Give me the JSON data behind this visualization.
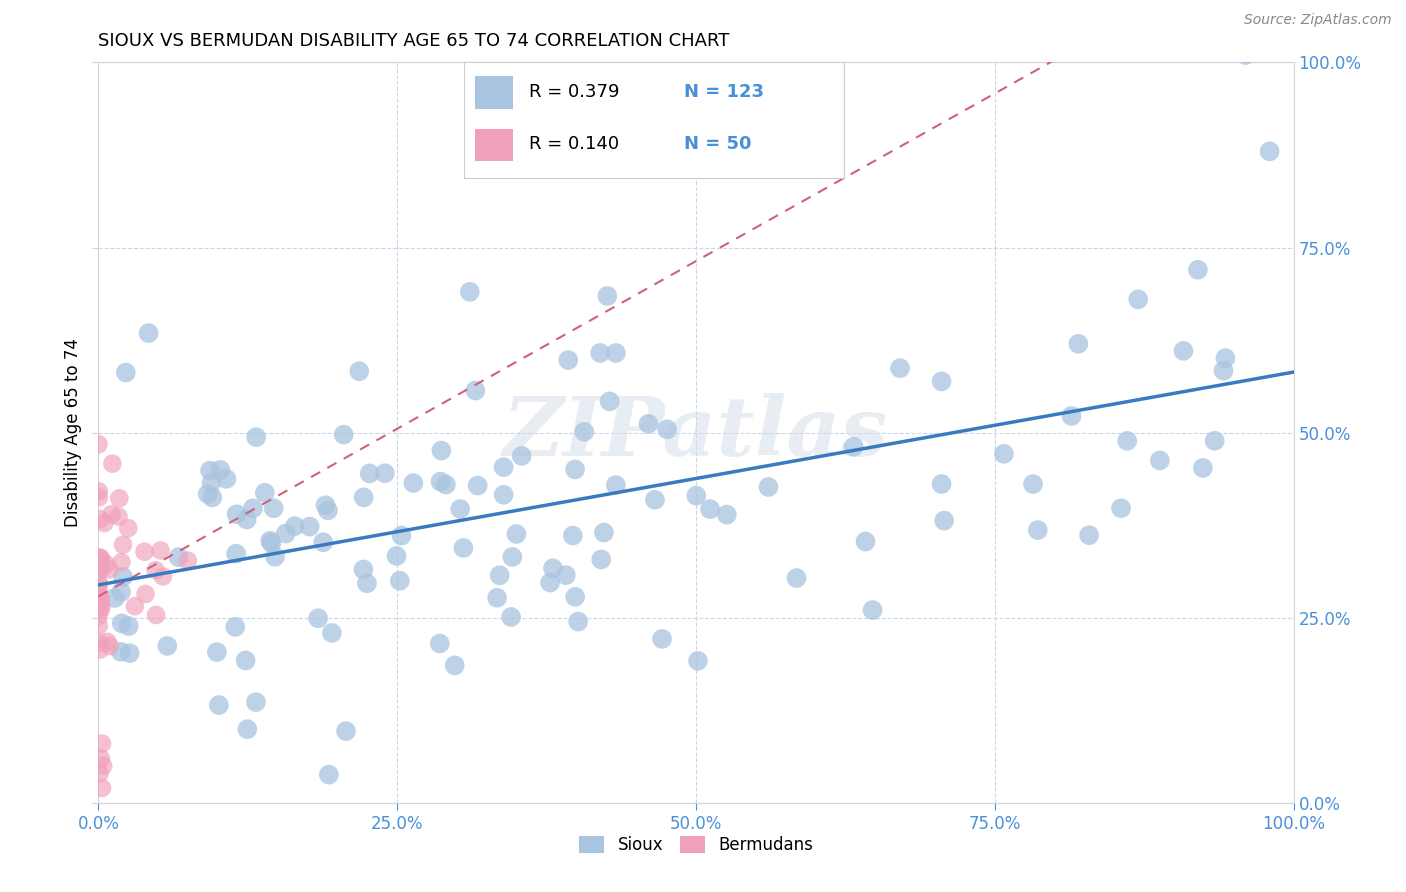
{
  "title": "SIOUX VS BERMUDAN DISABILITY AGE 65 TO 74 CORRELATION CHART",
  "source": "Source: ZipAtlas.com",
  "ylabel": "Disability Age 65 to 74",
  "sioux_R": 0.379,
  "sioux_N": 123,
  "bermudan_R": 0.14,
  "bermudan_N": 50,
  "sioux_color": "#a8c4e0",
  "sioux_line_color": "#3a7bbf",
  "bermudan_color": "#f0a0b8",
  "bermudan_line_color": "#d06080",
  "legend_sioux": "Sioux",
  "legend_bermudan": "Bermudans",
  "tick_color": "#4a90d9",
  "grid_color": "#c8d8e8",
  "title_fontsize": 13,
  "axis_fontsize": 12,
  "legend_fontsize": 13
}
